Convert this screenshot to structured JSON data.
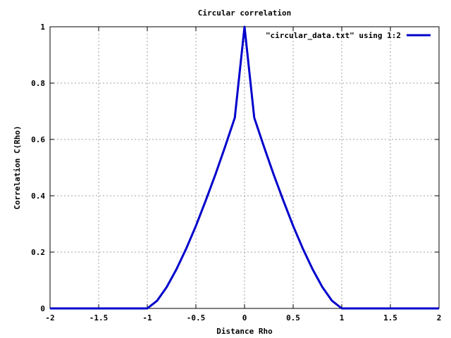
{
  "chart_data": {
    "type": "line",
    "title": "Circular correlation",
    "xlabel": "Distance Rho",
    "ylabel": "Correlation C(Rho)",
    "xlim": [
      -2,
      2
    ],
    "ylim": [
      0,
      1
    ],
    "grid": true,
    "legend_position": "top-right",
    "x_ticks": [
      {
        "value": -2,
        "label": "-2"
      },
      {
        "value": -1.5,
        "label": "-1.5"
      },
      {
        "value": -1,
        "label": "-1"
      },
      {
        "value": -0.5,
        "label": "-0.5"
      },
      {
        "value": 0,
        "label": "0"
      },
      {
        "value": 0.5,
        "label": "0.5"
      },
      {
        "value": 1,
        "label": "1"
      },
      {
        "value": 1.5,
        "label": "1.5"
      },
      {
        "value": 2,
        "label": "2"
      }
    ],
    "y_ticks": [
      {
        "value": 0,
        "label": "0"
      },
      {
        "value": 0.2,
        "label": "0.2"
      },
      {
        "value": 0.4,
        "label": "0.4"
      },
      {
        "value": 0.6,
        "label": "0.6"
      },
      {
        "value": 0.8,
        "label": "0.8"
      },
      {
        "value": 1,
        "label": "1"
      }
    ],
    "series": [
      {
        "name": "\"circular_data.txt\" using 1:2",
        "color": "#0000cc",
        "x": [
          -2,
          -1.5,
          -1.0,
          -0.9,
          -0.8,
          -0.7,
          -0.6,
          -0.5,
          -0.4,
          -0.3,
          -0.2,
          -0.1,
          0,
          0.1,
          0.2,
          0.3,
          0.4,
          0.5,
          0.6,
          0.7,
          0.8,
          0.9,
          1.0,
          1.5,
          2
        ],
        "y": [
          0,
          0,
          0,
          0.027,
          0.076,
          0.139,
          0.212,
          0.293,
          0.382,
          0.475,
          0.574,
          0.677,
          1.0,
          0.677,
          0.574,
          0.475,
          0.382,
          0.293,
          0.212,
          0.139,
          0.076,
          0.027,
          0,
          0,
          0
        ]
      }
    ]
  }
}
